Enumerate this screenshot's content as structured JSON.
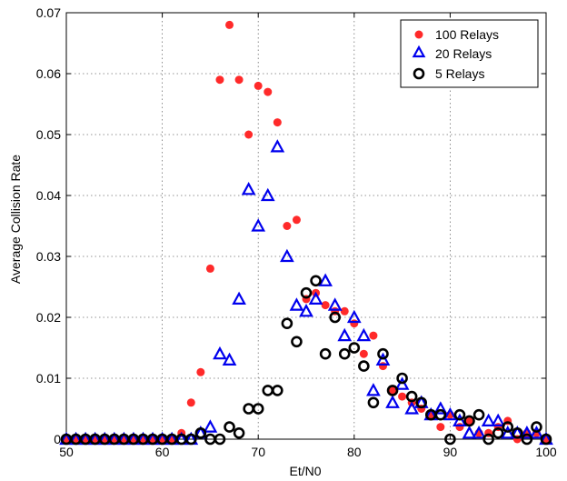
{
  "chart_data": {
    "type": "scatter",
    "title": "",
    "xlabel": "Et/N0",
    "ylabel": "Average Collision Rate",
    "xlim": [
      50,
      100
    ],
    "ylim": [
      0,
      0.07
    ],
    "xticks": [
      50,
      60,
      70,
      80,
      90,
      100
    ],
    "yticks": [
      0,
      0.01,
      0.02,
      0.03,
      0.04,
      0.05,
      0.06,
      0.07
    ],
    "xtick_labels": [
      "50",
      "60",
      "70",
      "80",
      "90",
      "100"
    ],
    "ytick_labels": [
      "0",
      "0.01",
      "0.02",
      "0.03",
      "0.04",
      "0.05",
      "0.06",
      "0.07"
    ],
    "grid": true,
    "legend_position": "top-right",
    "series": [
      {
        "name": "100 Relays",
        "marker": "filled-circle",
        "color": "#ff2a2a",
        "x": [
          50,
          51,
          52,
          53,
          54,
          55,
          56,
          57,
          58,
          59,
          60,
          61,
          62,
          63,
          64,
          65,
          66,
          67,
          68,
          69,
          70,
          71,
          72,
          73,
          74,
          75,
          76,
          77,
          78,
          79,
          80,
          81,
          82,
          83,
          84,
          85,
          86,
          87,
          88,
          89,
          90,
          91,
          92,
          93,
          94,
          95,
          96,
          97,
          98,
          99,
          100
        ],
        "y": [
          0,
          0,
          0,
          0,
          0,
          0,
          0,
          0,
          0,
          0,
          0,
          0,
          0.001,
          0.006,
          0.011,
          0.028,
          0.059,
          0.068,
          0.059,
          0.05,
          0.058,
          0.057,
          0.052,
          0.035,
          0.036,
          0.023,
          0.024,
          0.022,
          0.021,
          0.021,
          0.019,
          0.014,
          0.017,
          0.012,
          0.008,
          0.007,
          0.006,
          0.005,
          0.004,
          0.002,
          0.004,
          0.002,
          0.003,
          0.001,
          0.001,
          0.002,
          0.003,
          0.0,
          0.001,
          0.001,
          0.0
        ]
      },
      {
        "name": "20 Relays",
        "marker": "triangle",
        "color": "#0000ee",
        "x": [
          50,
          51,
          52,
          53,
          54,
          55,
          56,
          57,
          58,
          59,
          60,
          61,
          62,
          63,
          64,
          65,
          66,
          67,
          68,
          69,
          70,
          71,
          72,
          73,
          74,
          75,
          76,
          77,
          78,
          79,
          80,
          81,
          82,
          83,
          84,
          85,
          86,
          87,
          88,
          89,
          90,
          91,
          92,
          93,
          94,
          95,
          96,
          97,
          98,
          99,
          100
        ],
        "y": [
          0,
          0,
          0,
          0,
          0,
          0,
          0,
          0,
          0,
          0,
          0,
          0,
          0,
          0,
          0.001,
          0.002,
          0.014,
          0.013,
          0.023,
          0.041,
          0.035,
          0.04,
          0.048,
          0.03,
          0.022,
          0.021,
          0.023,
          0.026,
          0.022,
          0.017,
          0.02,
          0.017,
          0.008,
          0.013,
          0.006,
          0.009,
          0.005,
          0.006,
          0.004,
          0.005,
          0.004,
          0.003,
          0.001,
          0.001,
          0.003,
          0.003,
          0.001,
          0.001,
          0.001,
          0.001,
          0
        ]
      },
      {
        "name": "5 Relays",
        "marker": "open-circle",
        "color": "#000000",
        "x": [
          50,
          51,
          52,
          53,
          54,
          55,
          56,
          57,
          58,
          59,
          60,
          61,
          62,
          63,
          64,
          65,
          66,
          67,
          68,
          69,
          70,
          71,
          72,
          73,
          74,
          75,
          76,
          77,
          78,
          79,
          80,
          81,
          82,
          83,
          84,
          85,
          86,
          87,
          88,
          89,
          90,
          91,
          92,
          93,
          94,
          95,
          96,
          97,
          98,
          99,
          100
        ],
        "y": [
          0,
          0,
          0,
          0,
          0,
          0,
          0,
          0,
          0,
          0,
          0,
          0,
          0,
          0,
          0.001,
          0.0,
          0.0,
          0.002,
          0.001,
          0.005,
          0.005,
          0.008,
          0.008,
          0.019,
          0.016,
          0.024,
          0.026,
          0.014,
          0.02,
          0.014,
          0.015,
          0.012,
          0.006,
          0.014,
          0.008,
          0.01,
          0.007,
          0.006,
          0.004,
          0.004,
          0.0,
          0.004,
          0.003,
          0.004,
          0.0,
          0.001,
          0.002,
          0.001,
          0.0,
          0.002,
          0.0
        ]
      }
    ]
  }
}
